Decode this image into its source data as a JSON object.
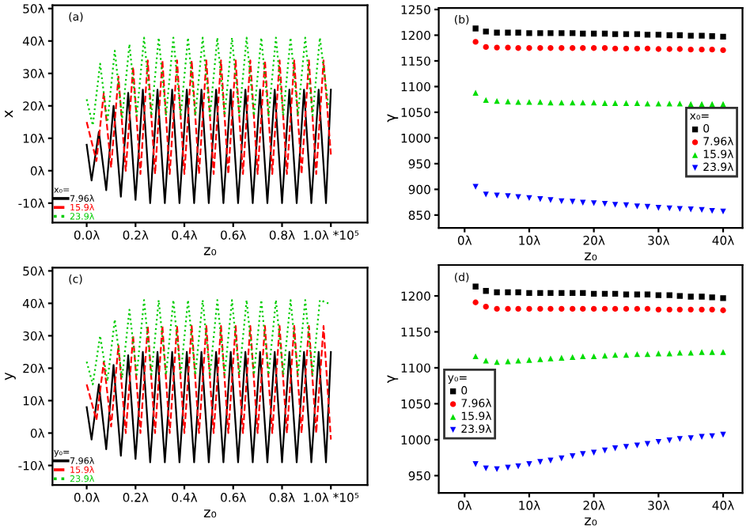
{
  "chart_data": [
    {
      "type": "line",
      "ylabel": "x",
      "xlabel": "z₀",
      "legend_title": "x₀=",
      "legend": "bottom left",
      "annotations": [
        "(a)"
      ],
      "xlim": [
        -0.14,
        1.15
      ],
      "ylim": [
        -16,
        51
      ],
      "xticks": [
        {
          "value": 0.0,
          "label": "0.0λ"
        },
        {
          "value": 0.2,
          "label": "0.2λ"
        },
        {
          "value": 0.4,
          "label": "0.4λ"
        },
        {
          "value": 0.6,
          "label": "0.6λ"
        },
        {
          "value": 0.8,
          "label": "0.8λ"
        },
        {
          "value": 1.0,
          "label": "1.0λ *10⁵"
        }
      ],
      "yticks": [
        {
          "value": -10,
          "label": "-10λ"
        },
        {
          "value": 0,
          "label": "0λ"
        },
        {
          "value": 10,
          "label": "10λ"
        },
        {
          "value": 20,
          "label": "20λ"
        },
        {
          "value": 30,
          "label": "30λ"
        },
        {
          "value": 40,
          "label": "40λ"
        },
        {
          "value": 50,
          "label": "50λ"
        }
      ],
      "series": [
        {
          "name": "7.96λ",
          "color": "#000000",
          "line_style": "solid",
          "x": [
            0.0,
            0.02,
            0.05,
            0.08,
            0.11,
            0.14,
            0.17,
            0.2,
            0.23,
            0.26,
            0.29,
            0.32,
            0.35,
            0.38,
            0.41,
            0.44,
            0.47,
            0.5,
            0.53,
            0.56,
            0.59,
            0.62,
            0.65,
            0.68,
            0.71,
            0.74,
            0.77,
            0.8,
            0.83,
            0.86,
            0.89,
            0.92,
            0.95,
            0.98,
            1.0
          ],
          "values": [
            8,
            -3,
            12,
            -6,
            20,
            -8,
            24,
            -9,
            25,
            -10,
            25,
            -10,
            25,
            -10,
            25,
            -10,
            25,
            -10,
            25,
            -10,
            25,
            -10,
            25,
            -10,
            25,
            -10,
            25,
            -10,
            25,
            -10,
            25,
            -10,
            25,
            -10,
            25
          ]
        },
        {
          "name": "15.9λ",
          "color": "#ff0000",
          "line_style": "dashed",
          "x": [
            0.0,
            0.04,
            0.07,
            0.1,
            0.13,
            0.16,
            0.19,
            0.22,
            0.25,
            0.28,
            0.31,
            0.34,
            0.37,
            0.4,
            0.43,
            0.46,
            0.49,
            0.52,
            0.55,
            0.58,
            0.61,
            0.64,
            0.67,
            0.7,
            0.73,
            0.76,
            0.79,
            0.82,
            0.85,
            0.88,
            0.91,
            0.94,
            0.97,
            1.0
          ],
          "values": [
            15,
            3,
            24,
            1,
            29,
            0,
            32,
            -1,
            34,
            -1,
            34,
            -1,
            34,
            -1,
            34,
            -1,
            34,
            -1,
            34,
            -1,
            34,
            -1,
            34,
            -1,
            34,
            -1,
            34,
            -1,
            34,
            -1,
            34,
            -1,
            34,
            5
          ]
        },
        {
          "name": "23.9λ",
          "color": "#00cc00",
          "line_style": "dotted",
          "x": [
            0.0,
            0.025,
            0.055,
            0.085,
            0.115,
            0.145,
            0.175,
            0.205,
            0.235,
            0.265,
            0.295,
            0.325,
            0.355,
            0.385,
            0.415,
            0.445,
            0.475,
            0.505,
            0.535,
            0.565,
            0.595,
            0.625,
            0.655,
            0.685,
            0.715,
            0.745,
            0.775,
            0.805,
            0.835,
            0.865,
            0.895,
            0.925,
            0.955,
            0.99
          ],
          "values": [
            22,
            14,
            33,
            15,
            37,
            16,
            39,
            17,
            41,
            17,
            41,
            17,
            41,
            17,
            41,
            17,
            41,
            17,
            41,
            17,
            41,
            17,
            41,
            17,
            41,
            17,
            41,
            17,
            41,
            17,
            41,
            17,
            41,
            20
          ]
        }
      ]
    },
    {
      "type": "scatter",
      "ylabel": "γ",
      "xlabel": "z₀",
      "legend_title": "x₀=",
      "legend": "right",
      "annotations": [
        "(b)"
      ],
      "xlim": [
        -4,
        43
      ],
      "ylim": [
        825,
        1253
      ],
      "xticks": [
        {
          "value": 0,
          "label": "0λ"
        },
        {
          "value": 10,
          "label": "10λ"
        },
        {
          "value": 20,
          "label": "20λ"
        },
        {
          "value": 30,
          "label": "30λ"
        },
        {
          "value": 40,
          "label": "40λ"
        }
      ],
      "yticks": [
        850,
        900,
        950,
        1000,
        1050,
        1100,
        1150,
        1200,
        1250
      ],
      "x": [
        1.7,
        3.3,
        5,
        6.7,
        8.3,
        10,
        11.7,
        13.3,
        15,
        16.7,
        18.3,
        20,
        21.7,
        23.3,
        25,
        26.7,
        28.3,
        30,
        31.7,
        33.3,
        35,
        36.7,
        38.3,
        40
      ],
      "series": [
        {
          "name": "0",
          "color": "#000000",
          "marker": "square",
          "values": [
            1213,
            1207,
            1205,
            1205,
            1205,
            1204,
            1204,
            1204,
            1204,
            1204,
            1203,
            1203,
            1203,
            1202,
            1202,
            1202,
            1201,
            1201,
            1200,
            1200,
            1199,
            1199,
            1198,
            1197
          ]
        },
        {
          "name": "7.96λ",
          "color": "#ff0000",
          "marker": "circle",
          "values": [
            1187,
            1177,
            1176,
            1176,
            1175,
            1175,
            1175,
            1175,
            1175,
            1175,
            1175,
            1175,
            1175,
            1174,
            1174,
            1174,
            1174,
            1173,
            1173,
            1173,
            1172,
            1172,
            1172,
            1171
          ]
        },
        {
          "name": "15.9λ",
          "color": "#00dd00",
          "marker": "triangle",
          "values": [
            1088,
            1074,
            1072,
            1071,
            1070,
            1070,
            1070,
            1069,
            1069,
            1069,
            1069,
            1069,
            1068,
            1068,
            1068,
            1068,
            1067,
            1067,
            1067,
            1067,
            1066,
            1066,
            1066,
            1066
          ]
        },
        {
          "name": "23.9λ",
          "color": "#0000ff",
          "marker": "triangle_down",
          "values": [
            905,
            890,
            888,
            887,
            885,
            883,
            881,
            879,
            877,
            876,
            874,
            873,
            872,
            870,
            869,
            867,
            866,
            864,
            863,
            862,
            861,
            860,
            858,
            857
          ]
        }
      ]
    },
    {
      "type": "line",
      "ylabel": "y",
      "xlabel": "z₀",
      "legend_title": "y₀=",
      "legend": "bottom left",
      "annotations": [
        "(c)"
      ],
      "xlim": [
        -0.14,
        1.15
      ],
      "ylim": [
        -16,
        51
      ],
      "xticks": [
        {
          "value": 0.0,
          "label": "0.0λ"
        },
        {
          "value": 0.2,
          "label": "0.2λ"
        },
        {
          "value": 0.4,
          "label": "0.4λ"
        },
        {
          "value": 0.6,
          "label": "0.6λ"
        },
        {
          "value": 0.8,
          "label": "0.8λ"
        },
        {
          "value": 1.0,
          "label": "1.0λ *10⁵"
        }
      ],
      "yticks": [
        {
          "value": -10,
          "label": "-10λ"
        },
        {
          "value": 0,
          "label": "0λ"
        },
        {
          "value": 10,
          "label": "10λ"
        },
        {
          "value": 20,
          "label": "20λ"
        },
        {
          "value": 30,
          "label": "30λ"
        },
        {
          "value": 40,
          "label": "40λ"
        },
        {
          "value": 50,
          "label": "50λ"
        }
      ],
      "series": [
        {
          "name": "7.96λ",
          "color": "#000000",
          "line_style": "solid",
          "x": [
            0.0,
            0.02,
            0.05,
            0.08,
            0.11,
            0.14,
            0.17,
            0.2,
            0.23,
            0.26,
            0.29,
            0.32,
            0.35,
            0.38,
            0.41,
            0.44,
            0.47,
            0.5,
            0.53,
            0.56,
            0.59,
            0.62,
            0.65,
            0.68,
            0.71,
            0.74,
            0.77,
            0.8,
            0.83,
            0.86,
            0.89,
            0.92,
            0.95,
            0.98,
            1.0
          ],
          "values": [
            8,
            -2,
            15,
            -5,
            21,
            -7,
            24,
            -8,
            25,
            -9,
            25,
            -9,
            25,
            -9,
            25,
            -9,
            25,
            -9,
            25,
            -9,
            25,
            -9,
            25,
            -9,
            25,
            -9,
            25,
            -9,
            25,
            -9,
            25,
            -9,
            25,
            -9,
            25
          ]
        },
        {
          "name": "15.9λ",
          "color": "#ff0000",
          "line_style": "dashed",
          "x": [
            0.0,
            0.04,
            0.07,
            0.1,
            0.13,
            0.16,
            0.19,
            0.22,
            0.25,
            0.28,
            0.31,
            0.34,
            0.37,
            0.4,
            0.43,
            0.46,
            0.49,
            0.52,
            0.55,
            0.58,
            0.61,
            0.64,
            0.67,
            0.7,
            0.73,
            0.76,
            0.79,
            0.82,
            0.85,
            0.88,
            0.91,
            0.94,
            0.97,
            1.0
          ],
          "values": [
            15,
            4,
            22,
            2,
            27,
            0,
            30,
            0,
            33,
            0,
            33,
            0,
            33,
            0,
            33,
            0,
            33,
            0,
            33,
            0,
            33,
            0,
            33,
            0,
            33,
            0,
            33,
            0,
            33,
            0,
            33,
            0,
            33,
            -2
          ]
        },
        {
          "name": "23.9λ",
          "color": "#00cc00",
          "line_style": "dotted",
          "x": [
            0.0,
            0.025,
            0.055,
            0.085,
            0.115,
            0.145,
            0.175,
            0.205,
            0.235,
            0.265,
            0.295,
            0.325,
            0.355,
            0.385,
            0.415,
            0.445,
            0.475,
            0.505,
            0.535,
            0.565,
            0.595,
            0.625,
            0.655,
            0.685,
            0.715,
            0.745,
            0.775,
            0.805,
            0.835,
            0.865,
            0.895,
            0.925,
            0.955,
            0.99
          ],
          "values": [
            22,
            15,
            30,
            16,
            35,
            17,
            38,
            18,
            41,
            18,
            41,
            18,
            41,
            18,
            41,
            18,
            41,
            18,
            41,
            18,
            41,
            18,
            41,
            18,
            41,
            18,
            41,
            18,
            41,
            18,
            41,
            18,
            41,
            40
          ]
        }
      ]
    },
    {
      "type": "scatter",
      "ylabel": "γ",
      "xlabel": "z₀",
      "legend_title": "y₀=",
      "legend": "left",
      "annotations": [
        "(d)"
      ],
      "xlim": [
        -4,
        43
      ],
      "ylim": [
        926,
        1243
      ],
      "xticks": [
        {
          "value": 0,
          "label": "0λ"
        },
        {
          "value": 10,
          "label": "10λ"
        },
        {
          "value": 20,
          "label": "20λ"
        },
        {
          "value": 30,
          "label": "30λ"
        },
        {
          "value": 40,
          "label": "40λ"
        }
      ],
      "yticks": [
        950,
        1000,
        1050,
        1100,
        1150,
        1200
      ],
      "x": [
        1.7,
        3.3,
        5,
        6.7,
        8.3,
        10,
        11.7,
        13.3,
        15,
        16.7,
        18.3,
        20,
        21.7,
        23.3,
        25,
        26.7,
        28.3,
        30,
        31.7,
        33.3,
        35,
        36.7,
        38.3,
        40
      ],
      "series": [
        {
          "name": "0",
          "color": "#000000",
          "marker": "square",
          "values": [
            1213,
            1207,
            1205,
            1205,
            1205,
            1204,
            1204,
            1204,
            1204,
            1204,
            1204,
            1203,
            1203,
            1203,
            1202,
            1202,
            1202,
            1201,
            1201,
            1200,
            1199,
            1199,
            1198,
            1197
          ]
        },
        {
          "name": "7.96λ",
          "color": "#ff0000",
          "marker": "circle",
          "values": [
            1191,
            1185,
            1182,
            1182,
            1182,
            1182,
            1182,
            1182,
            1182,
            1182,
            1182,
            1182,
            1182,
            1182,
            1182,
            1182,
            1182,
            1181,
            1181,
            1181,
            1181,
            1181,
            1181,
            1180
          ]
        },
        {
          "name": "15.9λ",
          "color": "#00dd00",
          "marker": "triangle",
          "values": [
            1116,
            1110,
            1108,
            1109,
            1110,
            1111,
            1112,
            1113,
            1114,
            1115,
            1116,
            1116,
            1117,
            1118,
            1118,
            1119,
            1119,
            1120,
            1120,
            1121,
            1121,
            1122,
            1122,
            1122
          ]
        },
        {
          "name": "23.9λ",
          "color": "#0000ff",
          "marker": "triangle_down",
          "values": [
            966,
            960,
            959,
            961,
            963,
            966,
            969,
            971,
            974,
            977,
            980,
            982,
            985,
            988,
            990,
            992,
            994,
            997,
            999,
            1001,
            1002,
            1004,
            1005,
            1007
          ]
        }
      ]
    }
  ]
}
